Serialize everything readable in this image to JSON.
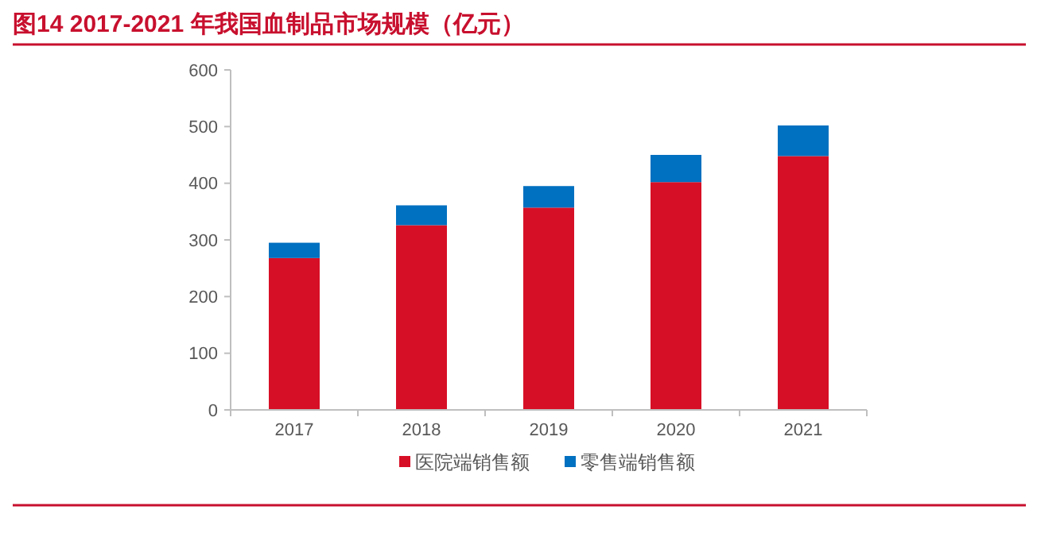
{
  "chart_data": {
    "type": "bar",
    "title": "图14  2017-2021 年我国血制品市场规模（亿元）",
    "categories": [
      "2017",
      "2018",
      "2019",
      "2020",
      "2021"
    ],
    "series": [
      {
        "name": "医院端销售额",
        "color": "#d70f26",
        "values": [
          268,
          326,
          357,
          402,
          448
        ]
      },
      {
        "name": "零售端销售额",
        "color": "#0070c0",
        "values": [
          27,
          35,
          38,
          48,
          54
        ]
      }
    ],
    "stacked": true,
    "ylim": [
      0,
      600
    ],
    "yticks": [
      0,
      100,
      200,
      300,
      400,
      500,
      600
    ],
    "grid": false,
    "legend": "bottom"
  }
}
